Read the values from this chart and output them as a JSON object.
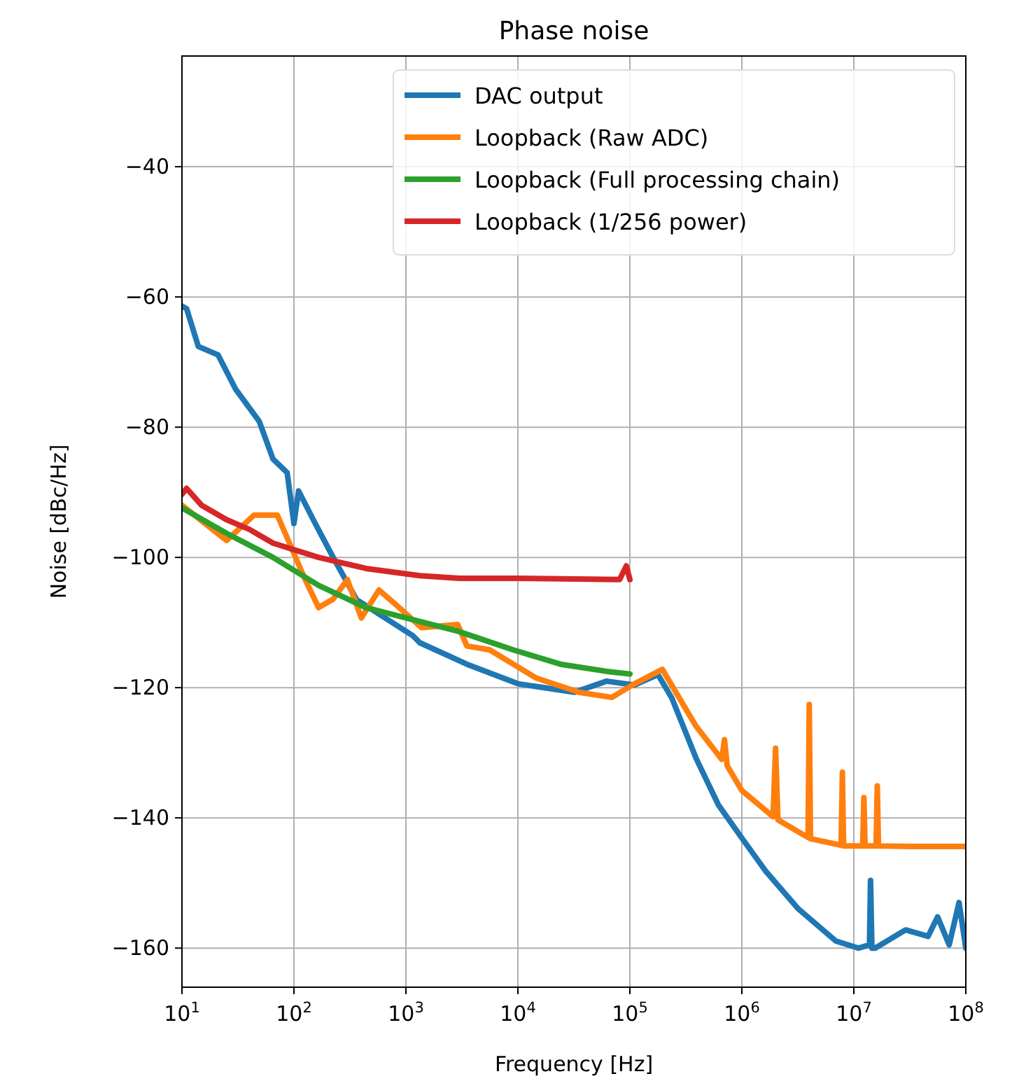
{
  "chart_data": {
    "type": "line",
    "title": "Phase noise",
    "xlabel": "Frequency [Hz]",
    "ylabel": "Noise [dBc/Hz]",
    "log": "x",
    "grid": true,
    "legend": "top right",
    "line_style": "solid",
    "marker": "none",
    "xlim": [
      10,
      100000000
    ],
    "xticks": [
      {
        "value": 10,
        "label": "10$^{1}$"
      },
      {
        "value": 100,
        "label": "10$^{2}$"
      },
      {
        "value": 1000,
        "label": "10$^{3}$"
      },
      {
        "value": 10000,
        "label": "10$^{4}$"
      },
      {
        "value": 100000,
        "label": "10$^{5}$"
      },
      {
        "value": 1000000,
        "label": "10$^{6}$"
      },
      {
        "value": 10000000,
        "label": "10$^{7}$"
      },
      {
        "value": 100000000,
        "label": "10$^{8}$"
      }
    ],
    "ylim": [
      -166,
      -23
    ],
    "yticks": [
      -160,
      -140,
      -120,
      -100,
      -80,
      -60,
      -40
    ],
    "series": [
      {
        "name": "DAC output",
        "color": "#1f77b4",
        "x": [
          10,
          11,
          14,
          21,
          30,
          49,
          65,
          87,
          100,
          110,
          155,
          224,
          363,
          1150,
          1330,
          3500,
          10000,
          32000,
          62000,
          110000,
          178000,
          237000,
          389000,
          617000,
          1000000,
          1620000,
          3160000,
          6900000,
          11000000,
          13800000,
          14100000,
          14500000,
          15500000,
          29000000,
          46000000,
          56000000,
          71000000,
          87000000,
          100000000
        ],
        "values": [
          -61.4,
          -61.8,
          -67.6,
          -68.9,
          -74.1,
          -79.1,
          -84.9,
          -87,
          -94.8,
          -89.8,
          -94.8,
          -100,
          -106.5,
          -112,
          -113.1,
          -116.4,
          -119.4,
          -120.7,
          -119,
          -119.6,
          -118,
          -121.6,
          -130.8,
          -138,
          -143.1,
          -148.1,
          -153.9,
          -158.9,
          -160,
          -159.5,
          -149.6,
          -160,
          -160,
          -157.2,
          -158.2,
          -155.2,
          -159.5,
          -153,
          -160
        ]
      },
      {
        "name": "Loopback (Raw ADC)",
        "color": "#ff7f0e",
        "x": [
          10,
          25,
          44,
          71,
          87,
          126,
          166,
          224,
          300,
          400,
          575,
          870,
          1380,
          2900,
          3500,
          5600,
          9100,
          14500,
          35000,
          69000,
          110000,
          195000,
          389000,
          660000,
          700000,
          740000,
          1000000,
          1900000,
          2000000,
          2100000,
          3900000,
          4000000,
          4100000,
          7700000,
          7900000,
          8100000,
          12000000,
          12300000,
          12600000,
          15800000,
          16200000,
          16600000,
          32000000,
          100000000
        ],
        "values": [
          -92,
          -97.4,
          -93.5,
          -93.5,
          -97,
          -103.4,
          -107.7,
          -106.4,
          -103.4,
          -109.3,
          -105,
          -107.7,
          -110.8,
          -110.3,
          -113.6,
          -114.2,
          -116.4,
          -118.5,
          -120.7,
          -121.5,
          -119.4,
          -117.2,
          -125.9,
          -131,
          -128,
          -132,
          -135.8,
          -139.8,
          -129.3,
          -140.3,
          -143,
          -122.6,
          -143.2,
          -144.2,
          -133,
          -144.3,
          -144.3,
          -136.9,
          -144.3,
          -144.3,
          -135.1,
          -144.3,
          -144.4,
          -144.4
        ]
      },
      {
        "name": "Loopback (Full processing chain)",
        "color": "#2ca02c",
        "x": [
          10,
          25,
          65,
          166,
          440,
          3000,
          3500,
          9100,
          24000,
          62000,
          100000
        ],
        "values": [
          -92.4,
          -96.3,
          -100,
          -104.3,
          -107.7,
          -111.4,
          -111.8,
          -114.2,
          -116.4,
          -117.5,
          -117.9
        ]
      },
      {
        "name": "Loopback (1/256 power)",
        "color": "#d62728",
        "x": [
          10,
          11,
          15,
          25,
          40,
          65,
          166,
          440,
          1330,
          3000,
          10000,
          81000,
          93000,
          100000
        ],
        "values": [
          -90.3,
          -89.4,
          -92,
          -94.2,
          -95.7,
          -97.8,
          -100,
          -101.7,
          -102.8,
          -103.2,
          -103.2,
          -103.4,
          -101.3,
          -103.4
        ]
      }
    ]
  }
}
